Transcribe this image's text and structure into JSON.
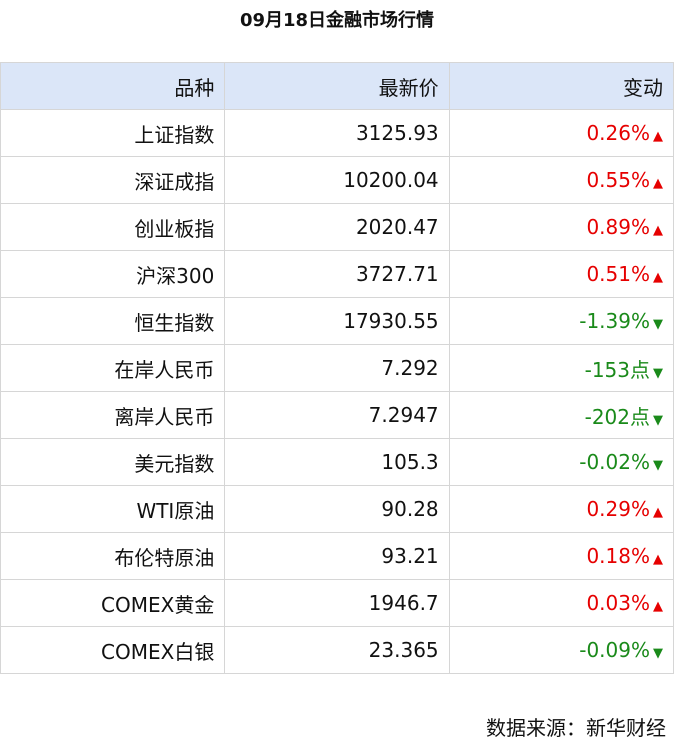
{
  "header": {
    "title": "09月18日金融市场行情"
  },
  "table": {
    "columns": [
      "品种",
      "最新价",
      "变动"
    ],
    "rows": [
      {
        "name": "上证指数",
        "price": "3125.93",
        "change": "0.26%",
        "arrow": "▲",
        "color": "#e60000"
      },
      {
        "name": "深证成指",
        "price": "10200.04",
        "change": "0.55%",
        "arrow": "▲",
        "color": "#e60000"
      },
      {
        "name": "创业板指",
        "price": "2020.47",
        "change": "0.89%",
        "arrow": "▲",
        "color": "#e60000"
      },
      {
        "name": "沪深300",
        "price": "3727.71",
        "change": "0.51%",
        "arrow": "▲",
        "color": "#e60000"
      },
      {
        "name": "恒生指数",
        "price": "17930.55",
        "change": "-1.39%",
        "arrow": "▼",
        "color": "#1a8a1a"
      },
      {
        "name": "在岸人民币",
        "price": "7.292",
        "change": "-153点",
        "arrow": "▼",
        "color": "#1a8a1a"
      },
      {
        "name": "离岸人民币",
        "price": "7.2947",
        "change": "-202点",
        "arrow": "▼",
        "color": "#1a8a1a"
      },
      {
        "name": "美元指数",
        "price": "105.3",
        "change": "-0.02%",
        "arrow": "▼",
        "color": "#1a8a1a"
      },
      {
        "name": "WTI原油",
        "price": "90.28",
        "change": "0.29%",
        "arrow": "▲",
        "color": "#e60000"
      },
      {
        "name": "布伦特原油",
        "price": "93.21",
        "change": "0.18%",
        "arrow": "▲",
        "color": "#e60000"
      },
      {
        "name": "COMEX黄金",
        "price": "1946.7",
        "change": "0.03%",
        "arrow": "▲",
        "color": "#e60000"
      },
      {
        "name": "COMEX白银",
        "price": "23.365",
        "change": "-0.09%",
        "arrow": "▼",
        "color": "#1a8a1a"
      }
    ]
  },
  "footer": {
    "source": "数据来源：新华财经"
  }
}
